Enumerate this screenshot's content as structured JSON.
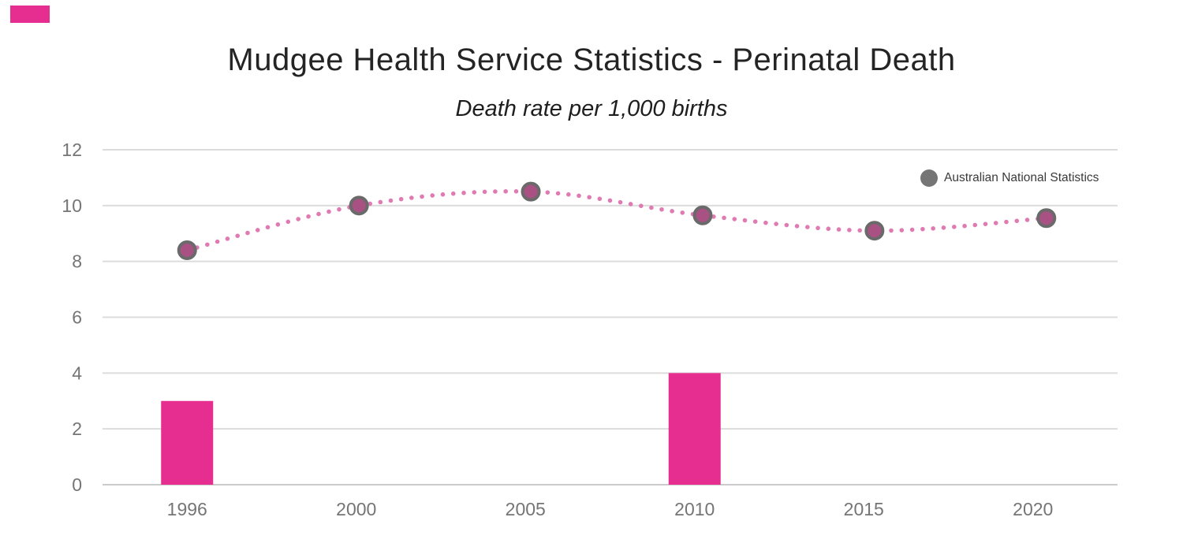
{
  "brand_mark": {
    "color": "#e62e90"
  },
  "header": {
    "title": "Mudgee Health Service Statistics - Perinatal Death",
    "subtitle": "Death rate per 1,000 births"
  },
  "legend": {
    "label": "Australian National Statistics",
    "dot_color": "#757575"
  },
  "colors": {
    "background": "#ffffff",
    "grid": "#dcdcdc",
    "axis": "#cbcbcb",
    "tick_text": "#757575",
    "title_text": "#242424",
    "legend_text": "#3a3a3a"
  },
  "chart_data": {
    "type": "combo",
    "categories": [
      "1996",
      "2000",
      "2005",
      "2010",
      "2015",
      "2020"
    ],
    "series": [
      {
        "name": "",
        "type": "bar",
        "color": "#e62e90",
        "values": [
          3,
          null,
          null,
          4,
          null,
          null
        ]
      },
      {
        "name": "Australian National Statistics",
        "type": "line",
        "style": "dotted",
        "line_color": "#e07ab2",
        "marker_fill": "#a95183",
        "marker_border": "#6a6a6a",
        "values": [
          8.4,
          10,
          10.5,
          9.65,
          9.1,
          9.55
        ]
      }
    ],
    "title": "Mudgee Health Service Statistics - Perinatal Death",
    "subtitle": "Death rate per 1,000 births",
    "xlabel": "",
    "ylabel": "",
    "ylim": [
      0,
      12
    ],
    "yticks": [
      0,
      2,
      4,
      6,
      8,
      10,
      12
    ],
    "grid": true,
    "legend_position": "top-right"
  }
}
